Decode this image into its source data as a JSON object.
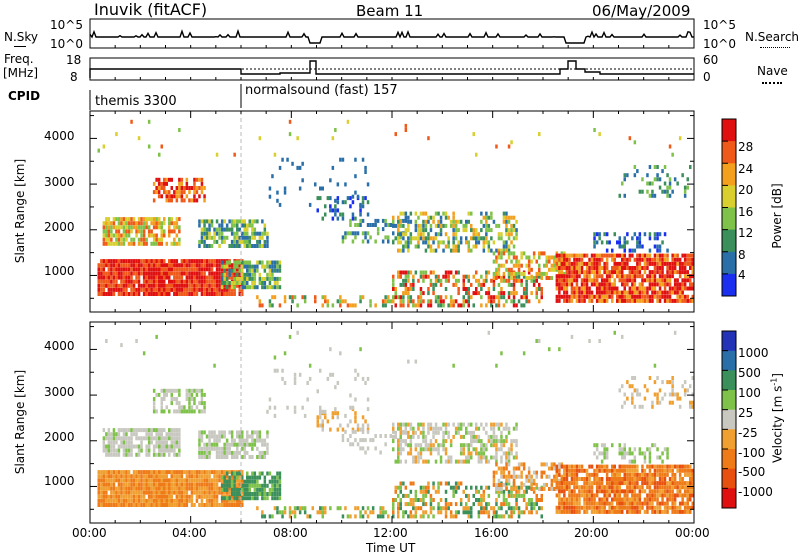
{
  "header": {
    "station": "Inuvik (fitACF)",
    "beam": "Beam 11",
    "date": "06/May/2009"
  },
  "top_panels": {
    "nsky_label": "N.Sky",
    "nsky_ticks": [
      "10^5",
      "10^0"
    ],
    "nsearch_label": "N.Search",
    "freq_label": "Freq.",
    "freq_unit": "[MHz]",
    "freq_ticks": [
      "18",
      "8"
    ],
    "nave_label": "Nave",
    "nave_ticks": [
      "60",
      "0"
    ],
    "cpid_label": "CPID",
    "cpid_segments": [
      {
        "name": "themis 3300",
        "start_hour": 0
      },
      {
        "name": "normalsound (fast) 157",
        "start_hour": 6
      }
    ]
  },
  "chart_data": [
    {
      "type": "heatmap",
      "name": "power",
      "ylabel": "Slant Range [km]",
      "xlim": [
        0,
        24
      ],
      "ylim": [
        200,
        4600
      ],
      "yticks": [
        "1000",
        "2000",
        "3000",
        "4000"
      ],
      "colorbar": {
        "label": "Power [dB]",
        "ticks": [
          "4",
          "8",
          "12",
          "16",
          "20",
          "24",
          "28"
        ],
        "colors": [
          "#1a2ff0",
          "#2a6fa8",
          "#3a8f5a",
          "#7fc24a",
          "#d9cf2e",
          "#f2a01e",
          "#ef5a1a",
          "#e01010"
        ]
      }
    },
    {
      "type": "heatmap",
      "name": "velocity",
      "ylabel": "Slant Range [km]",
      "xlim": [
        0,
        24
      ],
      "ylim": [
        200,
        4600
      ],
      "yticks": [
        "1000",
        "2000",
        "3000",
        "4000"
      ],
      "xlabel": "Time UT",
      "xticks": [
        "00:00",
        "04:00",
        "08:00",
        "12:00",
        "16:00",
        "20:00",
        "00:00"
      ],
      "colorbar": {
        "label": "Velocity [m s",
        "label_sup": "-1",
        "label_end": "]",
        "ticks": [
          "1000",
          "500",
          "100",
          "25",
          "-25",
          "-100",
          "-500",
          "-1000"
        ],
        "colors": [
          "#2233b8",
          "#2a6fa8",
          "#3a8f5a",
          "#7fc24a",
          "#c8c8c0",
          "#f0a030",
          "#ef7a18",
          "#e85010",
          "#e01010"
        ]
      }
    }
  ]
}
